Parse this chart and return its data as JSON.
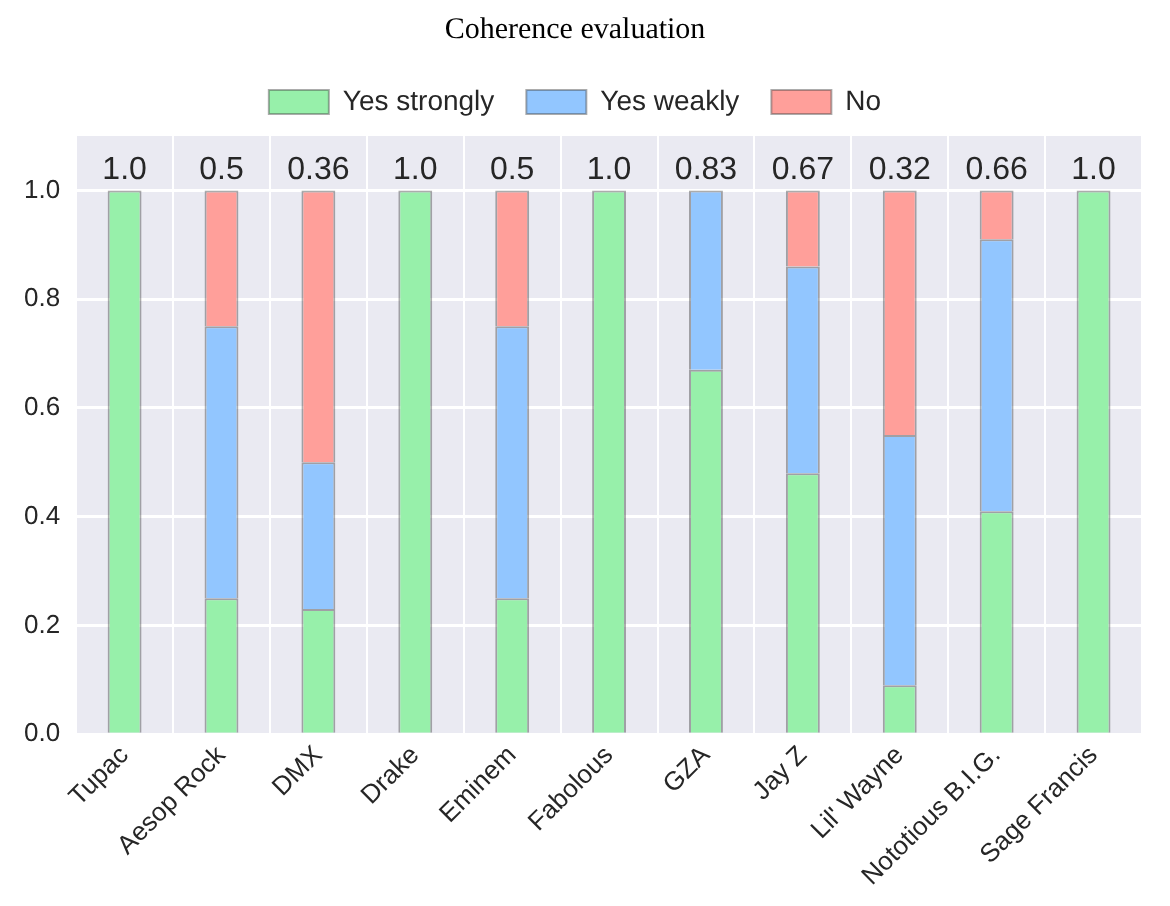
{
  "chart_data": {
    "type": "bar",
    "title": "Coherence evaluation",
    "stacked": true,
    "legend": "top",
    "grid": true,
    "categories": [
      "Tupac",
      "Aesop Rock",
      "DMX",
      "Drake",
      "Eminem",
      "Fabolous",
      "GZA",
      "Jay Z",
      "Lil' Wayne",
      "Nototious B.I.G.",
      "Sage Francis"
    ],
    "series": [
      {
        "name": "Yes strongly",
        "color": "#97f0aa",
        "values": [
          1,
          0.25,
          0.23,
          1,
          0.25,
          1,
          0.67,
          0.48,
          0.09,
          0.41,
          1
        ]
      },
      {
        "name": "Yes weakly",
        "color": "#92c6ff",
        "values": [
          0,
          0.5,
          0.27,
          0,
          0.5,
          0,
          0.33,
          0.38,
          0.46,
          0.5,
          0
        ]
      },
      {
        "name": "No",
        "color": "#ff9f9a",
        "values": [
          0,
          0.25,
          0.5,
          0,
          0.25,
          0,
          0,
          0.14,
          0.45,
          0.09,
          0
        ]
      }
    ],
    "ylim": [
      0,
      1.1
    ],
    "yticks": [
      {
        "value": 0,
        "label": "0.0"
      },
      {
        "value": 0.2,
        "label": "0.2"
      },
      {
        "value": 0.4,
        "label": "0.4"
      },
      {
        "value": 0.6,
        "label": "0.6"
      },
      {
        "value": 0.8,
        "label": "0.8"
      },
      {
        "value": 1,
        "label": "1.0"
      }
    ],
    "annotations": [
      {
        "text": "1.0",
        "x": "Tupac",
        "y": 1
      },
      {
        "text": "0.5",
        "x": "Aesop Rock",
        "y": 1
      },
      {
        "text": "0.36",
        "x": "DMX",
        "y": 1
      },
      {
        "text": "1.0",
        "x": "Drake",
        "y": 1
      },
      {
        "text": "0.5",
        "x": "Eminem",
        "y": 1
      },
      {
        "text": "1.0",
        "x": "Fabolous",
        "y": 1
      },
      {
        "text": "0.83",
        "x": "GZA",
        "y": 1
      },
      {
        "text": "0.67",
        "x": "Jay Z",
        "y": 1
      },
      {
        "text": "0.32",
        "x": "Lil' Wayne",
        "y": 1
      },
      {
        "text": "0.66",
        "x": "Nototious B.I.G.",
        "y": 1
      },
      {
        "text": "1.0",
        "x": "Sage Francis",
        "y": 1
      }
    ]
  }
}
